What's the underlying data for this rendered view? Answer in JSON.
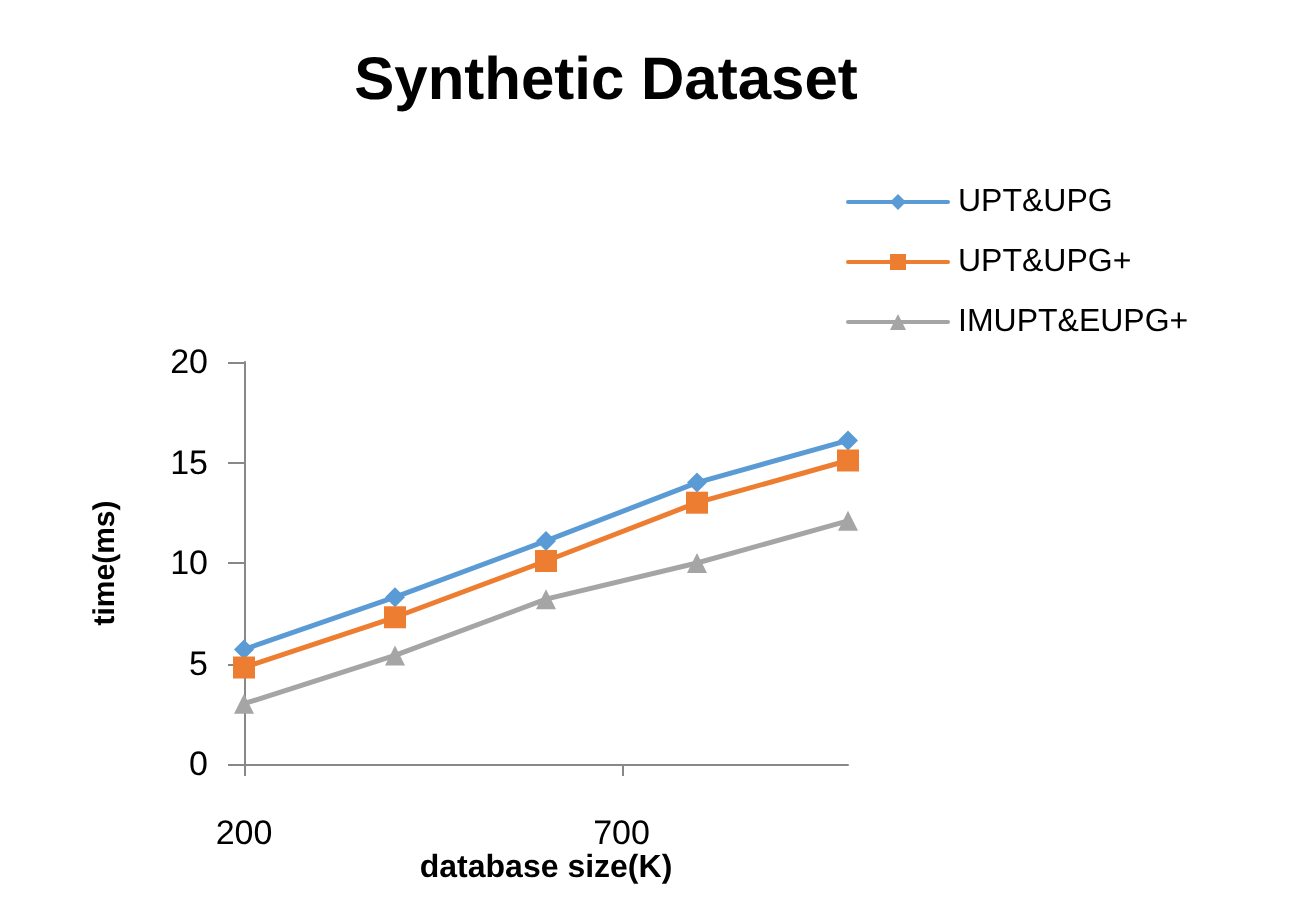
{
  "chart_data": {
    "type": "line",
    "title": "Synthetic Dataset",
    "xlabel": "database size(K)",
    "ylabel": "time(ms)",
    "x": [
      200,
      400,
      600,
      800,
      1000
    ],
    "series": [
      {
        "name": "UPT&UPG",
        "color": "#5b9bd5",
        "marker": "diamond",
        "values": [
          5.7,
          8.3,
          11.1,
          14.0,
          16.1
        ]
      },
      {
        "name": "UPT&UPG+",
        "color": "#ed7d31",
        "marker": "square",
        "values": [
          4.8,
          7.3,
          10.1,
          13.0,
          15.1
        ]
      },
      {
        "name": "IMUPT&EUPG+",
        "color": "#a5a5a5",
        "marker": "triangle",
        "values": [
          3.0,
          5.4,
          8.2,
          10.0,
          12.1
        ]
      }
    ],
    "xlim": [
      200,
      1000
    ],
    "xticks": [
      200,
      700
    ],
    "ylim": [
      0,
      20
    ],
    "yticks": [
      0,
      5,
      10,
      15,
      20
    ],
    "grid": false,
    "legend": "top right"
  }
}
